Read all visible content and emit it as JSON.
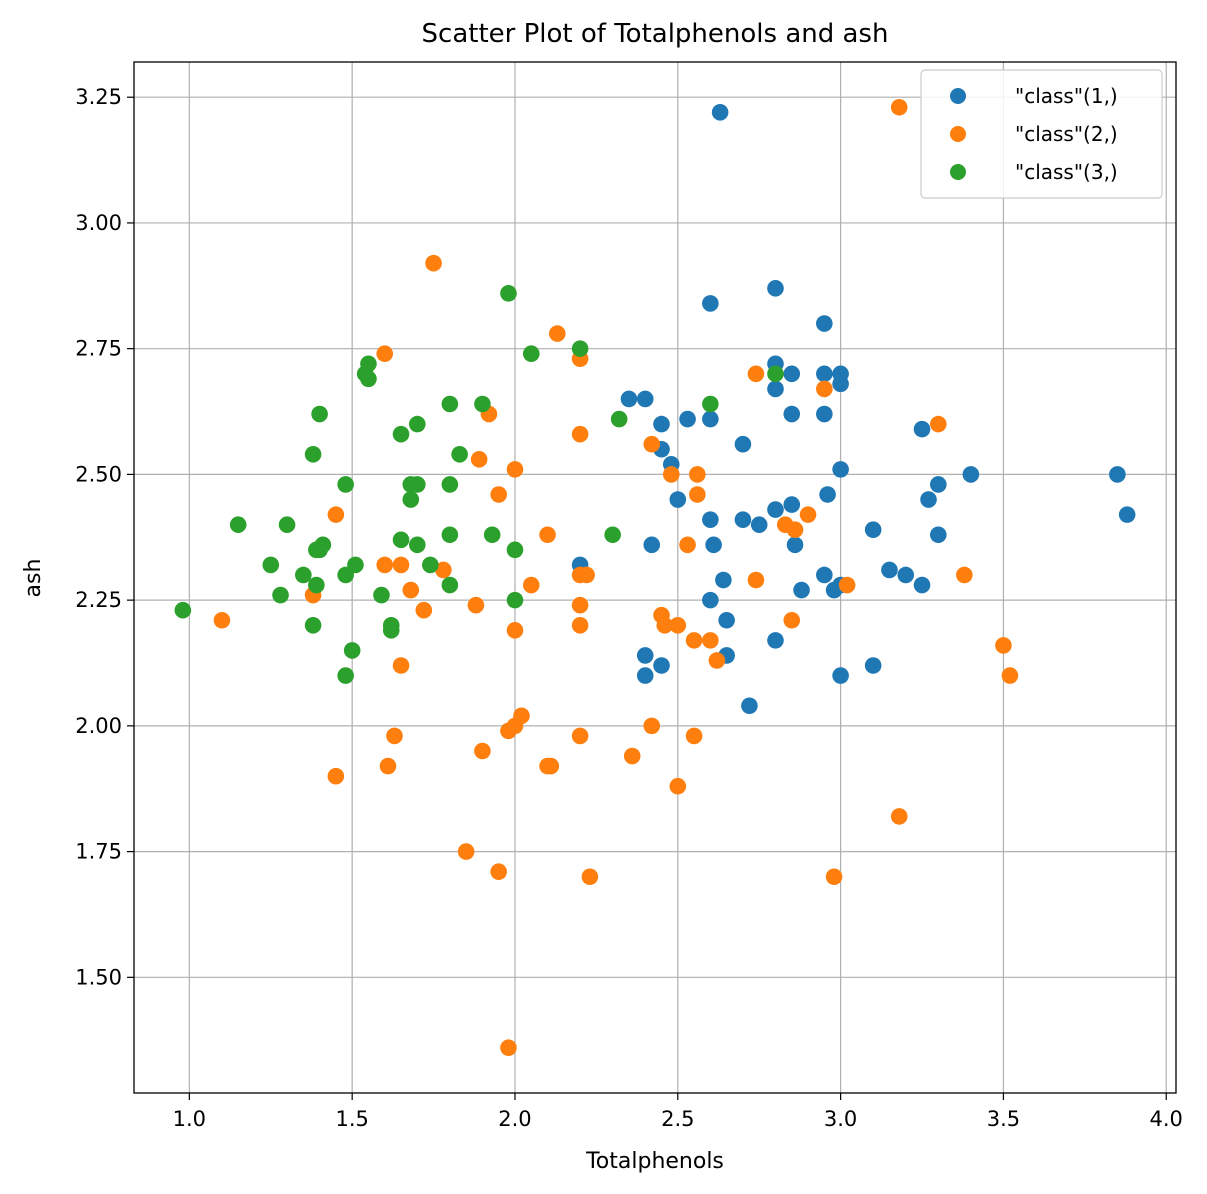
{
  "chart_data": {
    "type": "scatter",
    "title": "Scatter Plot of Totalphenols and ash",
    "xlabel": "Totalphenols",
    "ylabel": "ash",
    "xlim": [
      0.83,
      4.03
    ],
    "ylim": [
      1.27,
      3.32
    ],
    "xticks": [
      1.0,
      1.5,
      2.0,
      2.5,
      3.0,
      3.5,
      4.0
    ],
    "xtick_labels": [
      "1.0",
      "1.5",
      "2.0",
      "2.5",
      "3.0",
      "3.5",
      "4.0"
    ],
    "yticks": [
      1.5,
      1.75,
      2.0,
      2.25,
      2.5,
      2.75,
      3.0,
      3.25
    ],
    "ytick_labels": [
      "1.50",
      "1.75",
      "2.00",
      "2.25",
      "2.50",
      "2.75",
      "3.00",
      "3.25"
    ],
    "grid": true,
    "legend_position": "top-right",
    "series": [
      {
        "name": "\"class\"(1,)",
        "color": "#1f77b4",
        "points": [
          [
            2.63,
            3.22
          ],
          [
            2.6,
            2.84
          ],
          [
            2.8,
            2.87
          ],
          [
            2.95,
            2.8
          ],
          [
            2.8,
            2.72
          ],
          [
            2.8,
            2.67
          ],
          [
            2.85,
            2.7
          ],
          [
            2.95,
            2.7
          ],
          [
            3.0,
            2.7
          ],
          [
            3.0,
            2.68
          ],
          [
            2.85,
            2.62
          ],
          [
            2.95,
            2.62
          ],
          [
            2.35,
            2.65
          ],
          [
            2.4,
            2.65
          ],
          [
            2.45,
            2.6
          ],
          [
            2.53,
            2.61
          ],
          [
            2.6,
            2.61
          ],
          [
            2.7,
            2.56
          ],
          [
            3.25,
            2.59
          ],
          [
            3.4,
            2.5
          ],
          [
            3.85,
            2.5
          ],
          [
            3.88,
            2.42
          ],
          [
            2.45,
            2.55
          ],
          [
            2.48,
            2.52
          ],
          [
            2.5,
            2.45
          ],
          [
            3.0,
            2.51
          ],
          [
            2.96,
            2.46
          ],
          [
            3.3,
            2.48
          ],
          [
            3.27,
            2.45
          ],
          [
            2.8,
            2.43
          ],
          [
            2.85,
            2.44
          ],
          [
            2.6,
            2.41
          ],
          [
            2.7,
            2.41
          ],
          [
            2.75,
            2.4
          ],
          [
            3.1,
            2.39
          ],
          [
            3.3,
            2.38
          ],
          [
            2.42,
            2.36
          ],
          [
            2.61,
            2.36
          ],
          [
            2.86,
            2.36
          ],
          [
            2.2,
            2.32
          ],
          [
            3.15,
            2.31
          ],
          [
            3.2,
            2.3
          ],
          [
            2.95,
            2.3
          ],
          [
            2.64,
            2.29
          ],
          [
            3.25,
            2.28
          ],
          [
            2.98,
            2.27
          ],
          [
            3.0,
            2.28
          ],
          [
            2.88,
            2.27
          ],
          [
            2.6,
            2.25
          ],
          [
            2.65,
            2.21
          ],
          [
            2.8,
            2.17
          ],
          [
            2.4,
            2.14
          ],
          [
            2.65,
            2.14
          ],
          [
            2.45,
            2.12
          ],
          [
            3.1,
            2.12
          ],
          [
            2.4,
            2.1
          ],
          [
            3.0,
            2.1
          ],
          [
            2.72,
            2.04
          ]
        ]
      },
      {
        "name": "\"class\"(2,)",
        "color": "#ff7f0e",
        "points": [
          [
            3.18,
            3.23
          ],
          [
            1.75,
            2.92
          ],
          [
            2.13,
            2.78
          ],
          [
            1.6,
            2.74
          ],
          [
            2.2,
            2.73
          ],
          [
            2.74,
            2.7
          ],
          [
            2.95,
            2.67
          ],
          [
            1.92,
            2.62
          ],
          [
            3.3,
            2.6
          ],
          [
            2.2,
            2.58
          ],
          [
            2.42,
            2.56
          ],
          [
            1.89,
            2.53
          ],
          [
            2.0,
            2.51
          ],
          [
            2.48,
            2.5
          ],
          [
            2.56,
            2.5
          ],
          [
            1.95,
            2.46
          ],
          [
            2.56,
            2.46
          ],
          [
            2.9,
            2.42
          ],
          [
            1.45,
            2.42
          ],
          [
            2.83,
            2.4
          ],
          [
            2.86,
            2.39
          ],
          [
            2.1,
            2.38
          ],
          [
            2.53,
            2.36
          ],
          [
            1.6,
            2.32
          ],
          [
            1.65,
            2.32
          ],
          [
            1.78,
            2.31
          ],
          [
            2.2,
            2.3
          ],
          [
            2.22,
            2.3
          ],
          [
            3.38,
            2.3
          ],
          [
            2.74,
            2.29
          ],
          [
            2.05,
            2.28
          ],
          [
            3.02,
            2.28
          ],
          [
            1.68,
            2.27
          ],
          [
            1.38,
            2.26
          ],
          [
            1.88,
            2.24
          ],
          [
            2.2,
            2.24
          ],
          [
            1.72,
            2.23
          ],
          [
            2.45,
            2.22
          ],
          [
            2.46,
            2.2
          ],
          [
            2.5,
            2.2
          ],
          [
            2.2,
            2.2
          ],
          [
            2.85,
            2.21
          ],
          [
            1.1,
            2.21
          ],
          [
            2.0,
            2.19
          ],
          [
            2.55,
            2.17
          ],
          [
            2.6,
            2.17
          ],
          [
            3.5,
            2.16
          ],
          [
            2.62,
            2.13
          ],
          [
            1.65,
            2.12
          ],
          [
            3.52,
            2.1
          ],
          [
            2.02,
            2.02
          ],
          [
            2.42,
            2.0
          ],
          [
            2.0,
            2.0
          ],
          [
            1.98,
            1.99
          ],
          [
            2.2,
            1.98
          ],
          [
            2.55,
            1.98
          ],
          [
            1.63,
            1.98
          ],
          [
            1.9,
            1.95
          ],
          [
            2.36,
            1.94
          ],
          [
            2.1,
            1.92
          ],
          [
            2.11,
            1.92
          ],
          [
            1.61,
            1.92
          ],
          [
            1.45,
            1.9
          ],
          [
            2.5,
            1.88
          ],
          [
            3.18,
            1.82
          ],
          [
            1.85,
            1.75
          ],
          [
            1.95,
            1.71
          ],
          [
            2.23,
            1.7
          ],
          [
            2.98,
            1.7
          ],
          [
            1.98,
            1.36
          ]
        ]
      },
      {
        "name": "\"class\"(3,)",
        "color": "#2ca02c",
        "points": [
          [
            1.98,
            2.86
          ],
          [
            2.05,
            2.74
          ],
          [
            2.2,
            2.75
          ],
          [
            1.55,
            2.72
          ],
          [
            1.54,
            2.7
          ],
          [
            1.55,
            2.69
          ],
          [
            2.8,
            2.7
          ],
          [
            1.8,
            2.64
          ],
          [
            1.9,
            2.64
          ],
          [
            2.6,
            2.64
          ],
          [
            1.4,
            2.62
          ],
          [
            2.32,
            2.61
          ],
          [
            1.7,
            2.6
          ],
          [
            1.65,
            2.58
          ],
          [
            1.38,
            2.54
          ],
          [
            1.83,
            2.54
          ],
          [
            1.48,
            2.48
          ],
          [
            1.68,
            2.48
          ],
          [
            1.7,
            2.48
          ],
          [
            1.8,
            2.48
          ],
          [
            1.68,
            2.45
          ],
          [
            1.15,
            2.4
          ],
          [
            1.3,
            2.4
          ],
          [
            1.8,
            2.38
          ],
          [
            1.93,
            2.38
          ],
          [
            2.3,
            2.38
          ],
          [
            1.65,
            2.37
          ],
          [
            1.7,
            2.36
          ],
          [
            1.41,
            2.36
          ],
          [
            1.4,
            2.35
          ],
          [
            1.39,
            2.35
          ],
          [
            2.0,
            2.35
          ],
          [
            1.25,
            2.32
          ],
          [
            1.51,
            2.32
          ],
          [
            1.74,
            2.32
          ],
          [
            1.35,
            2.3
          ],
          [
            1.48,
            2.3
          ],
          [
            1.39,
            2.28
          ],
          [
            1.8,
            2.28
          ],
          [
            1.28,
            2.26
          ],
          [
            1.59,
            2.26
          ],
          [
            2.0,
            2.25
          ],
          [
            0.98,
            2.23
          ],
          [
            1.38,
            2.2
          ],
          [
            1.62,
            2.2
          ],
          [
            1.62,
            2.19
          ],
          [
            1.5,
            2.15
          ],
          [
            1.48,
            2.1
          ]
        ]
      }
    ]
  }
}
